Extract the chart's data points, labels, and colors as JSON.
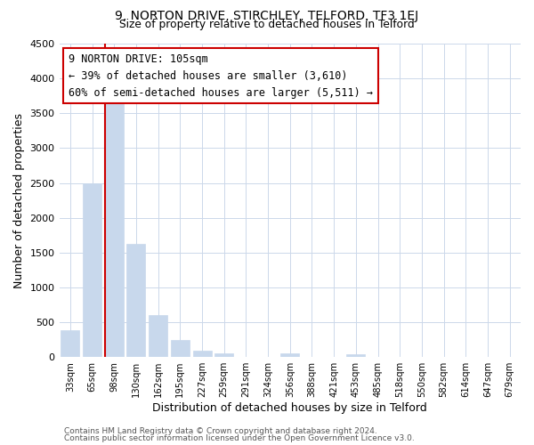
{
  "title": "9, NORTON DRIVE, STIRCHLEY, TELFORD, TF3 1EJ",
  "subtitle": "Size of property relative to detached houses in Telford",
  "xlabel": "Distribution of detached houses by size in Telford",
  "ylabel": "Number of detached properties",
  "bar_labels": [
    "33sqm",
    "65sqm",
    "98sqm",
    "130sqm",
    "162sqm",
    "195sqm",
    "227sqm",
    "259sqm",
    "291sqm",
    "324sqm",
    "356sqm",
    "388sqm",
    "421sqm",
    "453sqm",
    "485sqm",
    "518sqm",
    "550sqm",
    "582sqm",
    "614sqm",
    "647sqm",
    "679sqm"
  ],
  "bar_values": [
    380,
    2500,
    3700,
    1630,
    600,
    240,
    90,
    50,
    0,
    0,
    50,
    0,
    0,
    40,
    0,
    0,
    0,
    0,
    0,
    0,
    0
  ],
  "bar_color": "#c8d8ec",
  "bar_edge_color": "#c8d8ec",
  "vline_bar_index": 2,
  "vline_color": "#cc0000",
  "ylim": [
    0,
    4500
  ],
  "yticks": [
    0,
    500,
    1000,
    1500,
    2000,
    2500,
    3000,
    3500,
    4000,
    4500
  ],
  "annotation_title": "9 NORTON DRIVE: 105sqm",
  "annotation_line1": "← 39% of detached houses are smaller (3,610)",
  "annotation_line2": "60% of semi-detached houses are larger (5,511) →",
  "annotation_box_color": "#ffffff",
  "annotation_box_edgecolor": "#cc0000",
  "footer_line1": "Contains HM Land Registry data © Crown copyright and database right 2024.",
  "footer_line2": "Contains public sector information licensed under the Open Government Licence v3.0.",
  "background_color": "#ffffff",
  "grid_color": "#ccd8ea"
}
